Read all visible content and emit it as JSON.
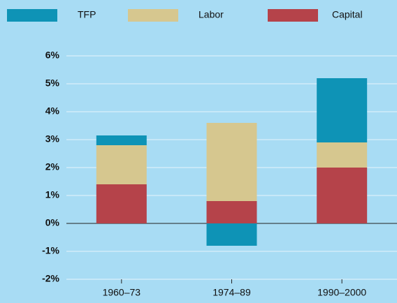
{
  "chart_data": {
    "type": "stacked_bar",
    "categories": [
      "1960–73",
      "1974–89",
      "1990–2000"
    ],
    "series": [
      {
        "name": "TFP",
        "color": "#0e93b6",
        "values": [
          0.35,
          -0.8,
          2.3
        ]
      },
      {
        "name": "Labor",
        "color": "#d6c78f",
        "values": [
          1.4,
          2.8,
          0.9
        ]
      },
      {
        "name": "Capital",
        "color": "#b5434a",
        "values": [
          1.4,
          0.8,
          2.0
        ]
      }
    ],
    "ylim": [
      -2,
      6
    ],
    "yticks": [
      {
        "value": -2,
        "label": "-2%"
      },
      {
        "value": -1,
        "label": "-1%"
      },
      {
        "value": 0,
        "label": "0%"
      },
      {
        "value": 1,
        "label": "1%"
      },
      {
        "value": 2,
        "label": "2%"
      },
      {
        "value": 3,
        "label": "3%"
      },
      {
        "value": 4,
        "label": "4%"
      },
      {
        "value": 5,
        "label": "5%"
      },
      {
        "value": 6,
        "label": "6%"
      }
    ],
    "grid": true
  }
}
